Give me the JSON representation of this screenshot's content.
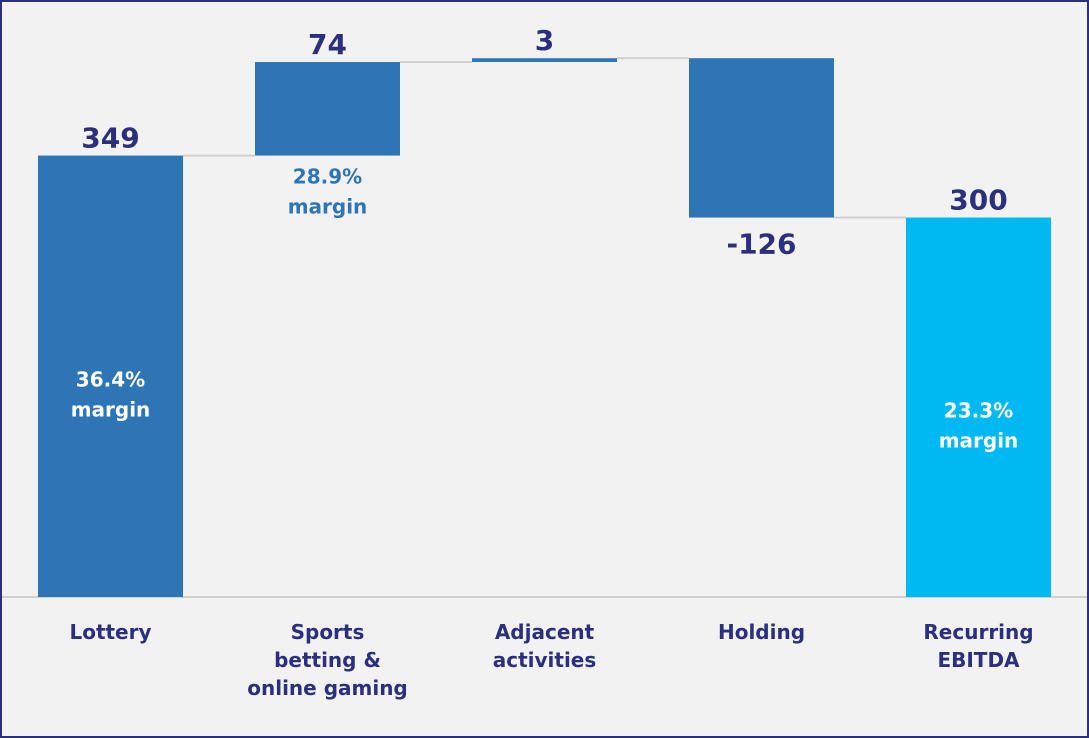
{
  "chart_data": {
    "type": "waterfall",
    "categories": [
      "Lottery",
      "Sports\nbetting &\nonline gaming",
      "Adjacent\nactivities",
      "Holding",
      "Recurring\nEBITDA"
    ],
    "values": [
      349,
      74,
      3,
      -126,
      300
    ],
    "colors": [
      "#2e75b6",
      "#2e75b6",
      "#2e75b6",
      "#2e75b6",
      "#00b9f2"
    ],
    "last_is_total": true,
    "annotations": [
      "36.4%\nmargin",
      "28.9%\nmargin",
      null,
      null,
      "23.3%\nmargin"
    ],
    "ylim": [
      0,
      472
    ]
  }
}
